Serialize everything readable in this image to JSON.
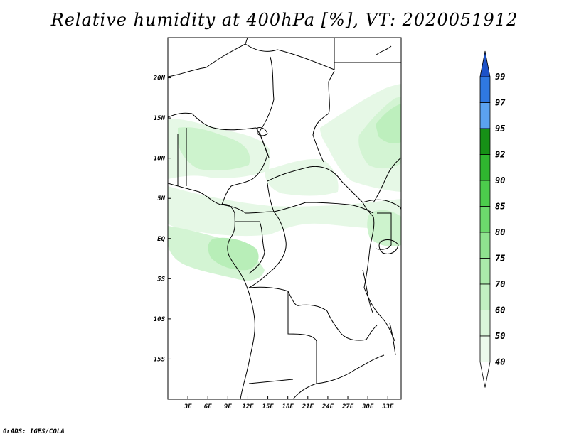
{
  "title": "Relative humidity at 400hPa [%], VT: 2020051912",
  "credit": "GrADS: IGES/COLA",
  "map": {
    "lon_labels": [
      "3E",
      "6E",
      "9E",
      "12E",
      "15E",
      "18E",
      "21E",
      "24E",
      "27E",
      "30E",
      "33E"
    ],
    "lat_labels": [
      "20N",
      "15N",
      "10N",
      "5N",
      "EQ",
      "5S",
      "10S",
      "15S"
    ],
    "lon_range": [
      0,
      35
    ],
    "lat_range": [
      -20,
      25
    ]
  },
  "legend": {
    "levels": [
      "40",
      "50",
      "60",
      "70",
      "75",
      "80",
      "85",
      "90",
      "92",
      "95",
      "97",
      "99"
    ],
    "colors": {
      "lt40": "#ffffff",
      "40_50": "#ebfaeb",
      "50_60": "#d9f5d9",
      "60_70": "#c2f0c2",
      "70_75": "#aaeaaa",
      "75_80": "#8fe28f",
      "80_85": "#6cd96c",
      "85_90": "#4ccc4c",
      "90_92": "#2fb52f",
      "92_95": "#169016",
      "95_97": "#5ba2f0",
      "97_99": "#2f78e0",
      "gt99": "#1d52c8"
    }
  }
}
